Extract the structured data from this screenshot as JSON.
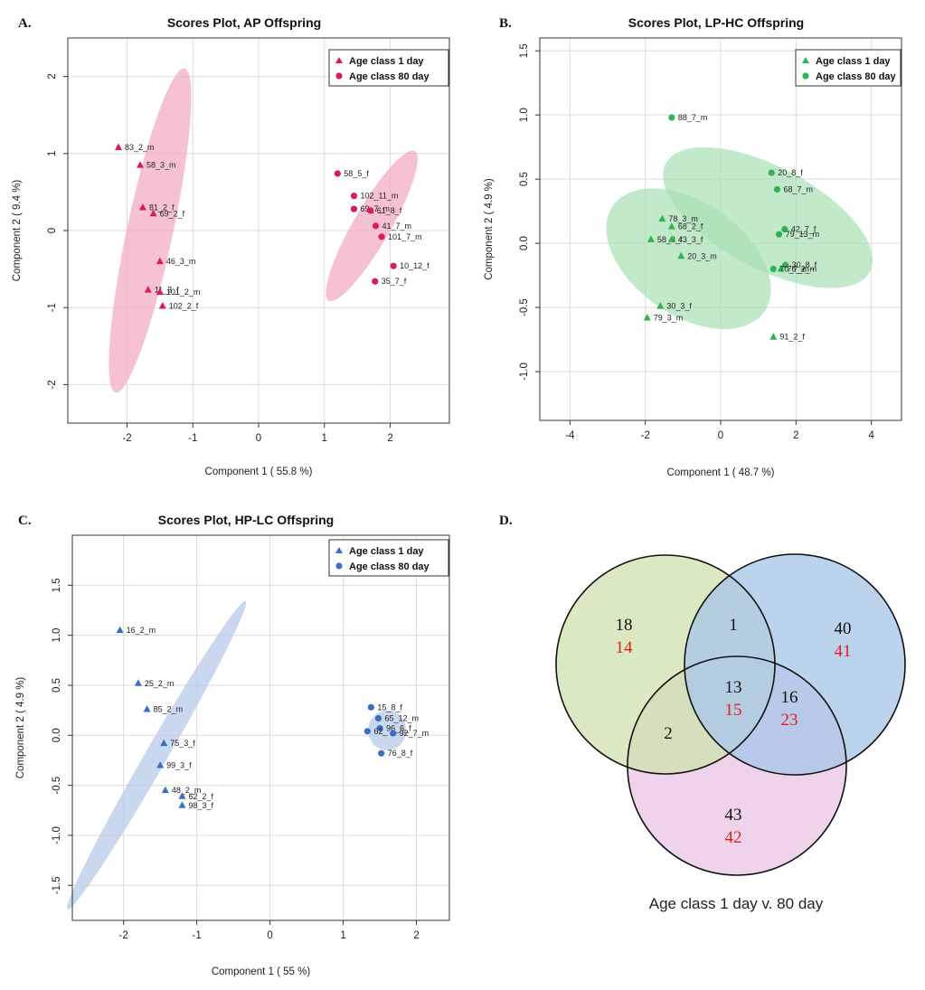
{
  "chart_data": [
    {
      "type": "scatter",
      "panel_letter": "A.",
      "title": "Scores Plot, AP Offspring",
      "xlabel": "Component 1 ( 55.8 %)",
      "ylabel": "Component 2 ( 9.4 %)",
      "xlim": [
        -2.9,
        2.9
      ],
      "ylim": [
        -2.5,
        2.5
      ],
      "xticks": [
        -2,
        -1,
        0,
        1,
        2
      ],
      "yticks": [
        -2,
        -1,
        0,
        1,
        2
      ],
      "color": "#d81b60",
      "ellipse_color": "#f4a6c2",
      "legend": [
        "Age class 1 day",
        "Age class 80 day"
      ],
      "legend_position": "top-right",
      "ellipses": [
        {
          "cx": -1.65,
          "cy": 0.0,
          "rx": 0.35,
          "ry": 2.15,
          "angle_deg": 12
        },
        {
          "cx": 1.72,
          "cy": 0.06,
          "rx": 0.28,
          "ry": 1.12,
          "angle_deg": 30
        }
      ],
      "series": [
        {
          "name": "Age class 1 day",
          "marker": "triangle",
          "points": [
            {
              "label": "83_2_m",
              "x": -2.13,
              "y": 1.08
            },
            {
              "label": "58_3_m",
              "x": -1.8,
              "y": 0.85
            },
            {
              "label": "81_2_f",
              "x": -1.76,
              "y": 0.3
            },
            {
              "label": "69_2_f",
              "x": -1.6,
              "y": 0.22
            },
            {
              "label": "46_3_m",
              "x": -1.5,
              "y": -0.4
            },
            {
              "label": "11_3_f",
              "x": -1.68,
              "y": -0.77
            },
            {
              "label": "101_2_m",
              "x": -1.5,
              "y": -0.8
            },
            {
              "label": "102_2_f",
              "x": -1.46,
              "y": -0.98
            }
          ]
        },
        {
          "name": "Age class 80 day",
          "marker": "circle",
          "points": [
            {
              "label": "58_5_f",
              "x": 1.2,
              "y": 0.74
            },
            {
              "label": "102_11_m",
              "x": 1.45,
              "y": 0.45
            },
            {
              "label": "69_7_m",
              "x": 1.45,
              "y": 0.28
            },
            {
              "label": "61_8_f",
              "x": 1.7,
              "y": 0.26
            },
            {
              "label": "41_7_m",
              "x": 1.78,
              "y": 0.06
            },
            {
              "label": "101_7_m",
              "x": 1.87,
              "y": -0.08
            },
            {
              "label": "10_12_f",
              "x": 2.05,
              "y": -0.46
            },
            {
              "label": "35_7_f",
              "x": 1.77,
              "y": -0.66
            }
          ]
        }
      ]
    },
    {
      "type": "scatter",
      "panel_letter": "B.",
      "title": "Scores Plot, LP-HC Offspring",
      "xlabel": "Component 1 ( 48.7 %)",
      "ylabel": "Component 2 ( 4.9 %)",
      "xlim": [
        -4.8,
        4.8
      ],
      "ylim": [
        -1.38,
        1.6
      ],
      "xticks": [
        -4,
        -2,
        0,
        2,
        4
      ],
      "yticks": [
        -1.0,
        -0.5,
        0.0,
        0.5,
        1.0,
        1.5
      ],
      "color": "#2eb450",
      "ellipse_color": "#a8e0b4",
      "legend": [
        "Age class 1 day",
        "Age class 80 day"
      ],
      "legend_position": "top-right",
      "ellipses": [
        {
          "cx": -0.85,
          "cy": -0.12,
          "rx": 1.5,
          "ry": 0.72,
          "angle_deg": -55
        },
        {
          "cx": 1.25,
          "cy": 0.2,
          "rx": 1.35,
          "ry": 0.9,
          "angle_deg": -62
        }
      ],
      "series": [
        {
          "name": "Age class 1 day",
          "marker": "triangle",
          "points": [
            {
              "label": "78_3_m",
              "x": -1.55,
              "y": 0.19
            },
            {
              "label": "68_2_f",
              "x": -1.3,
              "y": 0.13
            },
            {
              "label": "58_3_f",
              "x": -1.85,
              "y": 0.03
            },
            {
              "label": "43_3_f",
              "x": -1.3,
              "y": 0.03
            },
            {
              "label": "20_3_m",
              "x": -1.05,
              "y": -0.1
            },
            {
              "label": "30_3_f",
              "x": -1.6,
              "y": -0.49
            },
            {
              "label": "79_3_m",
              "x": -1.95,
              "y": -0.58
            },
            {
              "label": "91_2_f",
              "x": 1.4,
              "y": -0.73
            },
            {
              "label": "76_2_m",
              "x": 1.6,
              "y": -0.2
            }
          ]
        },
        {
          "name": "Age class 80 day",
          "marker": "circle",
          "points": [
            {
              "label": "88_7_m",
              "x": -1.3,
              "y": 0.98
            },
            {
              "label": "20_8_f",
              "x": 1.35,
              "y": 0.55
            },
            {
              "label": "68_7_m",
              "x": 1.5,
              "y": 0.42
            },
            {
              "label": "42_7_f",
              "x": 1.7,
              "y": 0.11
            },
            {
              "label": "79_13_m",
              "x": 1.55,
              "y": 0.07
            },
            {
              "label": "30_8_f",
              "x": 1.72,
              "y": -0.17
            },
            {
              "label": "70_7_m",
              "x": 1.4,
              "y": -0.2
            }
          ]
        }
      ]
    },
    {
      "type": "scatter",
      "panel_letter": "C.",
      "title": "Scores Plot, HP-LC Offspring",
      "xlabel": "Component 1 ( 55 %)",
      "ylabel": "Component 2 ( 4.9 %)",
      "xlim": [
        -2.7,
        2.45
      ],
      "ylim": [
        -1.85,
        2.0
      ],
      "xticks": [
        -2,
        -1,
        0,
        1,
        2
      ],
      "yticks": [
        -1.5,
        -1.0,
        -0.5,
        0.0,
        0.5,
        1.0,
        1.5
      ],
      "color": "#3a6fc4",
      "ellipse_color": "#b3c8e8",
      "legend": [
        "Age class 1 day",
        "Age class 80 day"
      ],
      "legend_position": "top-right",
      "ellipses": [
        {
          "cx": -1.55,
          "cy": -0.2,
          "rx": 0.15,
          "ry": 1.78,
          "angle_deg": 30
        },
        {
          "cx": 1.6,
          "cy": 0.05,
          "rx": 0.26,
          "ry": 0.2,
          "angle_deg": 0
        }
      ],
      "series": [
        {
          "name": "Age class 1 day",
          "marker": "triangle",
          "points": [
            {
              "label": "16_2_m",
              "x": -2.05,
              "y": 1.05
            },
            {
              "label": "25_2_m",
              "x": -1.8,
              "y": 0.52
            },
            {
              "label": "85_2_m",
              "x": -1.68,
              "y": 0.26
            },
            {
              "label": "75_3_f",
              "x": -1.45,
              "y": -0.08
            },
            {
              "label": "99_3_f",
              "x": -1.5,
              "y": -0.3
            },
            {
              "label": "48_2_m",
              "x": -1.43,
              "y": -0.55
            },
            {
              "label": "62_2_f",
              "x": -1.2,
              "y": -0.61
            },
            {
              "label": "98_3_f",
              "x": -1.2,
              "y": -0.7
            }
          ]
        },
        {
          "name": "Age class 80 day",
          "marker": "circle",
          "points": [
            {
              "label": "15_8_f",
              "x": 1.38,
              "y": 0.28
            },
            {
              "label": "65_12_m",
              "x": 1.48,
              "y": 0.17
            },
            {
              "label": "96_6_f",
              "x": 1.5,
              "y": 0.07
            },
            {
              "label": "62_",
              "x": 1.33,
              "y": 0.04
            },
            {
              "label": "92_7_m",
              "x": 1.68,
              "y": 0.02
            },
            {
              "label": "76_8_f",
              "x": 1.52,
              "y": -0.18
            }
          ]
        }
      ]
    }
  ],
  "venn": {
    "panel_letter": "D.",
    "caption": "Age class 1 day v. 80 day",
    "circle_colors": [
      "#cfe3b0",
      "#a9c6e8",
      "#e9c6e6"
    ],
    "regions": [
      {
        "id": "green-only",
        "black": "18",
        "red": "14"
      },
      {
        "id": "green-blue",
        "black": "1",
        "red": ""
      },
      {
        "id": "blue-only",
        "black": "40",
        "red": "41"
      },
      {
        "id": "center",
        "black": "13",
        "red": "15"
      },
      {
        "id": "green-pink",
        "black": "2",
        "red": ""
      },
      {
        "id": "blue-pink",
        "black": "16",
        "red": "23"
      },
      {
        "id": "pink-only",
        "black": "43",
        "red": "42"
      }
    ]
  }
}
